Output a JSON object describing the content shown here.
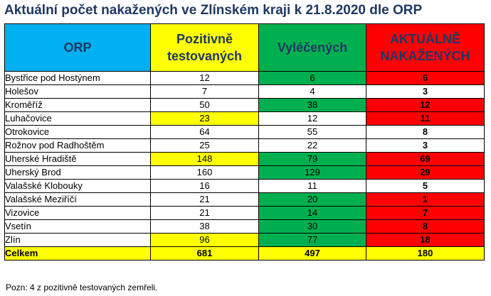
{
  "title": "Aktuální počet nakažených ve Zlínském kraji k 21.8.2020 dle ORP",
  "headers": {
    "orp": "ORP",
    "pos_line1": "Pozitivně",
    "pos_line2": "testovaných",
    "vyl": "Vyléčených",
    "akt_line1": "AKTUÁLNĚ",
    "akt_line2": "NAKAŽENÝCH"
  },
  "colors": {
    "yellow": "#ffff00",
    "green": "#00b050",
    "red": "#ff0000",
    "blue": "#00b0f0",
    "title": "#1f3864"
  },
  "rows": [
    {
      "orp": "Bystřice pod Hostýnem",
      "pos": "12",
      "vyl": "6",
      "akt": "6",
      "pos_hl": "white",
      "vyl_hl": "green",
      "akt_hl": "red"
    },
    {
      "orp": "Holešov",
      "pos": "7",
      "vyl": "4",
      "akt": "3",
      "pos_hl": "white",
      "vyl_hl": "white",
      "akt_hl": "white"
    },
    {
      "orp": "Kroměříž",
      "pos": "50",
      "vyl": "38",
      "akt": "12",
      "pos_hl": "white",
      "vyl_hl": "green",
      "akt_hl": "red"
    },
    {
      "orp": "Luhačovice",
      "pos": "23",
      "vyl": "12",
      "akt": "11",
      "pos_hl": "yellow",
      "vyl_hl": "white",
      "akt_hl": "red"
    },
    {
      "orp": "Otrokovice",
      "pos": "64",
      "vyl": "55",
      "akt": "8",
      "pos_hl": "white",
      "vyl_hl": "white",
      "akt_hl": "white"
    },
    {
      "orp": "Rožnov pod Radhoštěm",
      "pos": "25",
      "vyl": "22",
      "akt": "3",
      "pos_hl": "white",
      "vyl_hl": "white",
      "akt_hl": "white"
    },
    {
      "orp": "Uherské Hradiště",
      "pos": "148",
      "vyl": "79",
      "akt": "69",
      "pos_hl": "yellow",
      "vyl_hl": "green",
      "akt_hl": "red"
    },
    {
      "orp": "Uherský Brod",
      "pos": "160",
      "vyl": "129",
      "akt": "29",
      "pos_hl": "white",
      "vyl_hl": "green",
      "akt_hl": "red"
    },
    {
      "orp": "Valašské Klobouky",
      "pos": "16",
      "vyl": "11",
      "akt": "5",
      "pos_hl": "white",
      "vyl_hl": "white",
      "akt_hl": "white"
    },
    {
      "orp": "Valašské Meziříčí",
      "pos": "21",
      "vyl": "20",
      "akt": "1",
      "pos_hl": "white",
      "vyl_hl": "green",
      "akt_hl": "red"
    },
    {
      "orp": "Vizovice",
      "pos": "21",
      "vyl": "14",
      "akt": "7",
      "pos_hl": "white",
      "vyl_hl": "green",
      "akt_hl": "red"
    },
    {
      "orp": "Vsetín",
      "pos": "38",
      "vyl": "30",
      "akt": "8",
      "pos_hl": "white",
      "vyl_hl": "green",
      "akt_hl": "red"
    },
    {
      "orp": "Zlín",
      "pos": "96",
      "vyl": "77",
      "akt": "18",
      "pos_hl": "yellow",
      "vyl_hl": "green",
      "akt_hl": "red"
    }
  ],
  "total": {
    "orp": "Celkem",
    "pos": "681",
    "vyl": "497",
    "akt": "180"
  },
  "note": "Pozn: 4 z pozitivně testovaných zemřeli."
}
